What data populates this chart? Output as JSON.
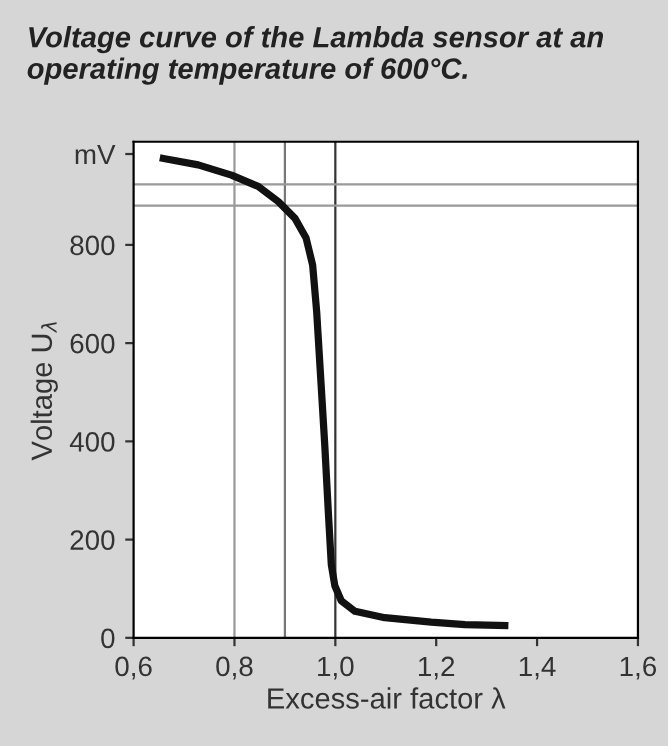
{
  "chart_data": {
    "type": "line",
    "title": "Voltage curve of the Lambda sensor at an operating temperature of 600°C.",
    "xlabel": "Excess-air factor λ",
    "ylabel": "Voltage U$_{λ}$",
    "series": [
      {
        "color": "#111111",
        "x": [
          0.659,
          0.728,
          0.794,
          0.847,
          0.887,
          0.92,
          0.942,
          0.955,
          0.963,
          0.971,
          0.979,
          0.986,
          0.992,
          0.999,
          1.012,
          1.039,
          1.098,
          1.19,
          1.257,
          1.336
        ],
        "values": [
          976,
          963,
          942,
          919,
          888,
          854,
          814,
          759,
          664,
          529,
          393,
          258,
          149,
          106,
          75,
          54,
          41,
          32,
          27,
          25
        ]
      }
    ],
    "xlim": [
      0.6,
      1.6
    ],
    "ylim": [
      0,
      1010
    ],
    "xticks": [
      {
        "value": 0.6,
        "label": "0,6"
      },
      {
        "value": 0.8,
        "label": "0,8"
      },
      {
        "value": 1.0,
        "label": "1,0"
      },
      {
        "value": 1.2,
        "label": "1,2"
      },
      {
        "value": 1.4,
        "label": "1,4"
      },
      {
        "value": 1.6,
        "label": "1,6"
      }
    ],
    "yticks": [
      0,
      200,
      400,
      600,
      800,
      {
        "value": 985,
        "label": "mV"
      }
    ],
    "ref_lines": [
      {
        "axis": "x",
        "value": 0.8,
        "color": "#999999"
      },
      {
        "axis": "x",
        "value": 0.9,
        "color": "#777777"
      },
      {
        "axis": "x",
        "value": 1.0,
        "color": "#333333"
      },
      {
        "axis": "y",
        "value": 923,
        "color": "#999999"
      },
      {
        "axis": "y",
        "value": 880,
        "color": "#999999"
      }
    ],
    "grid": false,
    "legend": false,
    "marker": "none",
    "line_style": "solid"
  }
}
